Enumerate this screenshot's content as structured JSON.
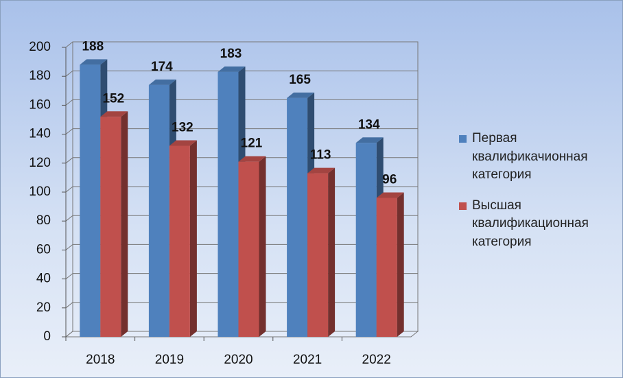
{
  "chart_data": {
    "type": "bar3d",
    "categories": [
      "2018",
      "2019",
      "2020",
      "2021",
      "2022"
    ],
    "series": [
      {
        "name": "Первая квалификачионная категория",
        "color": "#4f81bd",
        "values": [
          188,
          174,
          183,
          165,
          134
        ]
      },
      {
        "name": "Высшая квалификационная категория",
        "color": "#c0504d",
        "values": [
          152,
          132,
          121,
          113,
          96
        ]
      }
    ],
    "ylim": [
      0,
      200
    ],
    "yticks": [
      0,
      20,
      40,
      60,
      80,
      100,
      120,
      140,
      160,
      180,
      200
    ],
    "grid": true,
    "legend": "right"
  }
}
